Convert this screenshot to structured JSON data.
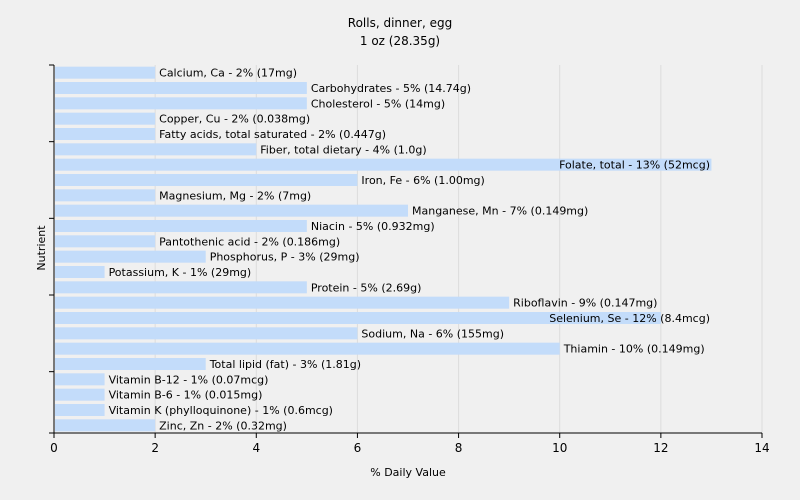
{
  "chart_data": {
    "type": "bar",
    "orientation": "horizontal",
    "title": "Rolls, dinner, egg",
    "subtitle": "1 oz (28.35g)",
    "xlabel": "% Daily Value",
    "ylabel": "Nutrient",
    "xlim": [
      0,
      14
    ],
    "xticks": [
      0,
      2,
      4,
      6,
      8,
      10,
      12,
      14
    ],
    "grid": true,
    "bar_color": "#c3dcfa",
    "categories": [
      "Calcium, Ca - 2% (17mg)",
      "Carbohydrates - 5% (14.74g)",
      "Cholesterol - 5% (14mg)",
      "Copper, Cu - 2% (0.038mg)",
      "Fatty acids, total saturated - 2% (0.447g)",
      "Fiber, total dietary - 4% (1.0g)",
      "Folate, total - 13% (52mcg)",
      "Iron, Fe - 6% (1.00mg)",
      "Magnesium, Mg - 2% (7mg)",
      "Manganese, Mn - 7% (0.149mg)",
      "Niacin - 5% (0.932mg)",
      "Pantothenic acid - 2% (0.186mg)",
      "Phosphorus, P - 3% (29mg)",
      "Potassium, K - 1% (29mg)",
      "Protein - 5% (2.69g)",
      "Riboflavin - 9% (0.147mg)",
      "Selenium, Se - 12% (8.4mcg)",
      "Sodium, Na - 6% (155mg)",
      "Thiamin - 10% (0.149mg)",
      "Total lipid (fat) - 3% (1.81g)",
      "Vitamin B-12 - 1% (0.07mcg)",
      "Vitamin B-6 - 1% (0.015mg)",
      "Vitamin K (phylloquinone) - 1% (0.6mcg)",
      "Zinc, Zn - 2% (0.32mg)"
    ],
    "values": [
      2,
      5,
      5,
      2,
      2,
      4,
      13,
      6,
      2,
      7,
      5,
      2,
      3,
      1,
      5,
      9,
      12,
      6,
      10,
      3,
      1,
      1,
      1,
      2
    ]
  }
}
